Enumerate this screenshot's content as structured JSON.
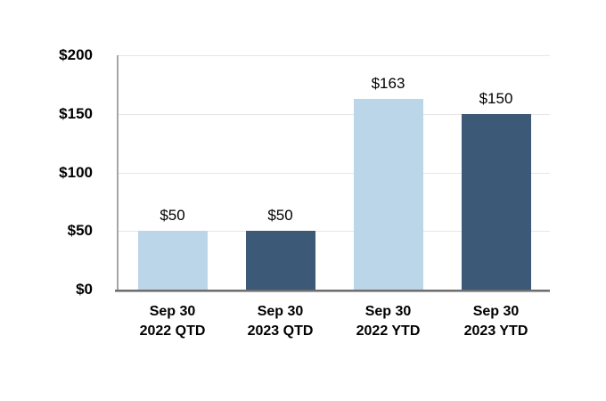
{
  "chart_data": {
    "type": "bar",
    "title": "",
    "xlabel": "",
    "ylabel": "",
    "grid": true,
    "legend": "none",
    "ylim": [
      0,
      200
    ],
    "yticks": [
      {
        "value": 0,
        "label": "$0"
      },
      {
        "value": 50,
        "label": "$50"
      },
      {
        "value": 100,
        "label": "$100"
      },
      {
        "value": 150,
        "label": "$150"
      },
      {
        "value": 200,
        "label": "$200"
      }
    ],
    "categories": [
      "Sep 30 2022 QTD",
      "Sep 30 2023 QTD",
      "Sep 30 2022 YTD",
      "Sep 30 2023 YTD"
    ],
    "bars": [
      {
        "label_line1": "Sep 30",
        "label_line2": "2022 QTD",
        "value": 50,
        "data_label": "$50",
        "color": "#bcd6e9"
      },
      {
        "label_line1": "Sep 30",
        "label_line2": "2023 QTD",
        "value": 50,
        "data_label": "$50",
        "color": "#3c5a77"
      },
      {
        "label_line1": "Sep 30",
        "label_line2": "2022 YTD",
        "value": 163,
        "data_label": "$163",
        "color": "#bcd6e9"
      },
      {
        "label_line1": "Sep 30",
        "label_line2": "2023 YTD",
        "value": 150,
        "data_label": "$150",
        "color": "#3c5a77"
      }
    ],
    "values": [
      50,
      50,
      163,
      150
    ]
  },
  "colors": {
    "series_light": "#bcd6e9",
    "series_dark": "#3c5a77",
    "gridline": "#e6e6e6",
    "y_axis_line": "#a6a6a6",
    "x_axis_line": "#6e6e6e",
    "text": "#000000",
    "background": "#ffffff"
  }
}
